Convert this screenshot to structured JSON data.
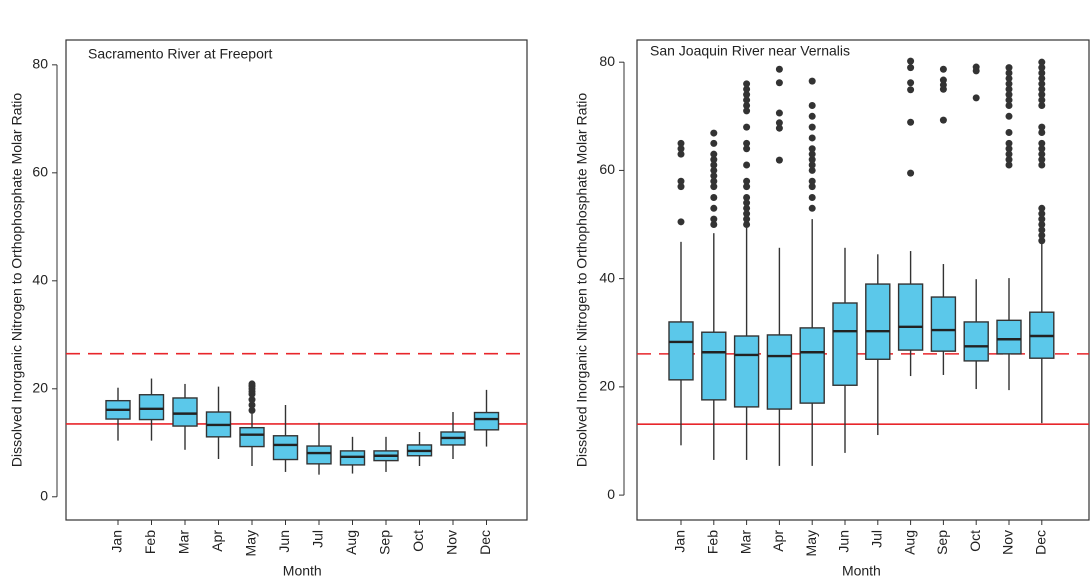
{
  "chart_data": [
    {
      "type": "box",
      "title": "Sacramento River at Freeport",
      "xlabel": "Month",
      "ylabel": "Dissolved Inorganic Nitrogen to Orthophosphate Molar Ratio",
      "color": "#5bc8ea",
      "outlier_color": "#333333",
      "categories": [
        "Jan",
        "Feb",
        "Mar",
        "Apr",
        "May",
        "Jun",
        "Jul",
        "Aug",
        "Sep",
        "Oct",
        "Nov",
        "Dec"
      ],
      "boxes": [
        {
          "low": 10.4,
          "q1": 14.4,
          "median": 16.1,
          "q3": 17.8,
          "high": 20.2,
          "outliers": []
        },
        {
          "low": 10.4,
          "q1": 14.3,
          "median": 16.3,
          "q3": 18.9,
          "high": 21.9,
          "outliers": []
        },
        {
          "low": 8.7,
          "q1": 13.1,
          "median": 15.4,
          "q3": 18.3,
          "high": 20.9,
          "outliers": []
        },
        {
          "low": 7.0,
          "q1": 11.1,
          "median": 13.3,
          "q3": 15.7,
          "high": 20.4,
          "outliers": []
        },
        {
          "low": 5.7,
          "q1": 9.3,
          "median": 11.5,
          "q3": 12.8,
          "high": 15.4,
          "outliers": [
            16.0,
            17.0,
            18.0,
            19.0,
            19.5,
            20.0,
            20.5,
            20.9
          ]
        },
        {
          "low": 4.6,
          "q1": 6.9,
          "median": 9.6,
          "q3": 11.3,
          "high": 17.0,
          "outliers": []
        },
        {
          "low": 4.1,
          "q1": 6.1,
          "median": 8.1,
          "q3": 9.4,
          "high": 13.7,
          "outliers": []
        },
        {
          "low": 4.3,
          "q1": 5.9,
          "median": 7.4,
          "q3": 8.5,
          "high": 11.1,
          "outliers": []
        },
        {
          "low": 4.6,
          "q1": 6.7,
          "median": 7.6,
          "q3": 8.5,
          "high": 11.1,
          "outliers": []
        },
        {
          "low": 5.7,
          "q1": 7.6,
          "median": 8.5,
          "q3": 9.6,
          "high": 12.0,
          "outliers": []
        },
        {
          "low": 7.0,
          "q1": 9.6,
          "median": 10.9,
          "q3": 12.0,
          "high": 15.7,
          "outliers": []
        },
        {
          "low": 9.3,
          "q1": 12.4,
          "median": 14.4,
          "q3": 15.6,
          "high": 19.8,
          "outliers": []
        }
      ],
      "reference_lines": [
        {
          "value": 26.5,
          "color": "#e8262b",
          "style": "dashed"
        },
        {
          "value": 13.5,
          "color": "#e8262b",
          "style": "solid"
        }
      ],
      "ylim": [
        -4.3,
        84.6
      ],
      "yticks": [
        0,
        20,
        40,
        60,
        80
      ]
    },
    {
      "type": "box",
      "title": "San Joaquin River near Vernalis",
      "xlabel": "Month",
      "ylabel": "Dissolved Inorganic Nitrogen to Orthophosphate Molar Ratio",
      "color": "#5bc8ea",
      "outlier_color": "#333333",
      "categories": [
        "Jan",
        "Feb",
        "Mar",
        "Apr",
        "May",
        "Jun",
        "Jul",
        "Aug",
        "Sep",
        "Oct",
        "Nov",
        "Dec"
      ],
      "boxes": [
        {
          "low": 9.2,
          "q1": 21.3,
          "median": 28.3,
          "q3": 32.0,
          "high": 46.8,
          "outliers": [
            50.5,
            57,
            58,
            63,
            64,
            65
          ]
        },
        {
          "low": 6.5,
          "q1": 17.6,
          "median": 26.4,
          "q3": 30.1,
          "high": 48.4,
          "outliers": [
            50,
            51,
            53,
            55,
            57,
            58,
            59,
            60,
            61,
            62,
            63,
            65,
            66.9
          ]
        },
        {
          "low": 6.5,
          "q1": 16.3,
          "median": 25.9,
          "q3": 29.4,
          "high": 49.4,
          "outliers": [
            50,
            51,
            52,
            53,
            54,
            55,
            57,
            58,
            61,
            64,
            65,
            68,
            71,
            72,
            73,
            74,
            75,
            76
          ]
        },
        {
          "low": 5.4,
          "q1": 15.9,
          "median": 25.7,
          "q3": 29.6,
          "high": 45.7,
          "outliers": [
            61.9,
            67.8,
            68.8,
            70.6,
            76.2,
            78.7
          ]
        },
        {
          "low": 5.4,
          "q1": 17.0,
          "median": 26.4,
          "q3": 30.9,
          "high": 51.0,
          "outliers": [
            53,
            55,
            57,
            58,
            60,
            61,
            62,
            63,
            64,
            66,
            68,
            70,
            72,
            76.5
          ]
        },
        {
          "low": 7.8,
          "q1": 20.3,
          "median": 30.3,
          "q3": 35.5,
          "high": 45.7,
          "outliers": []
        },
        {
          "low": 11.1,
          "q1": 25.1,
          "median": 30.3,
          "q3": 39.0,
          "high": 44.5,
          "outliers": []
        },
        {
          "low": 22.0,
          "q1": 26.8,
          "median": 31.1,
          "q3": 39.0,
          "high": 45.1,
          "outliers": [
            59.5,
            68.9,
            74.9,
            76.2,
            79.0,
            80.2
          ]
        },
        {
          "low": 22.2,
          "q1": 26.6,
          "median": 30.5,
          "q3": 36.6,
          "high": 42.7,
          "outliers": [
            69.3,
            75.0,
            75.8,
            76.7,
            78.7
          ]
        },
        {
          "low": 19.6,
          "q1": 24.8,
          "median": 27.5,
          "q3": 32.0,
          "high": 39.9,
          "outliers": [
            73.4,
            78.4,
            79.1
          ]
        },
        {
          "low": 19.4,
          "q1": 26.1,
          "median": 28.8,
          "q3": 32.3,
          "high": 40.1,
          "outliers": [
            61,
            62,
            63,
            64,
            65,
            67,
            70,
            72,
            73,
            74,
            75,
            76,
            77,
            78,
            79
          ]
        },
        {
          "low": 13.3,
          "q1": 25.3,
          "median": 29.4,
          "q3": 33.8,
          "high": 46.6,
          "outliers": [
            47,
            48,
            49,
            50,
            51,
            52,
            53,
            61,
            62,
            63,
            64,
            65,
            67,
            68,
            72,
            73,
            74,
            75,
            76,
            77,
            78,
            79,
            80
          ]
        }
      ],
      "reference_lines": [
        {
          "value": 26.1,
          "color": "#e8262b",
          "style": "dashed"
        },
        {
          "value": 13.1,
          "color": "#e8262b",
          "style": "solid"
        }
      ],
      "ylim": [
        -4.6,
        84.1
      ],
      "yticks": [
        0,
        20,
        40,
        60,
        80
      ]
    }
  ]
}
